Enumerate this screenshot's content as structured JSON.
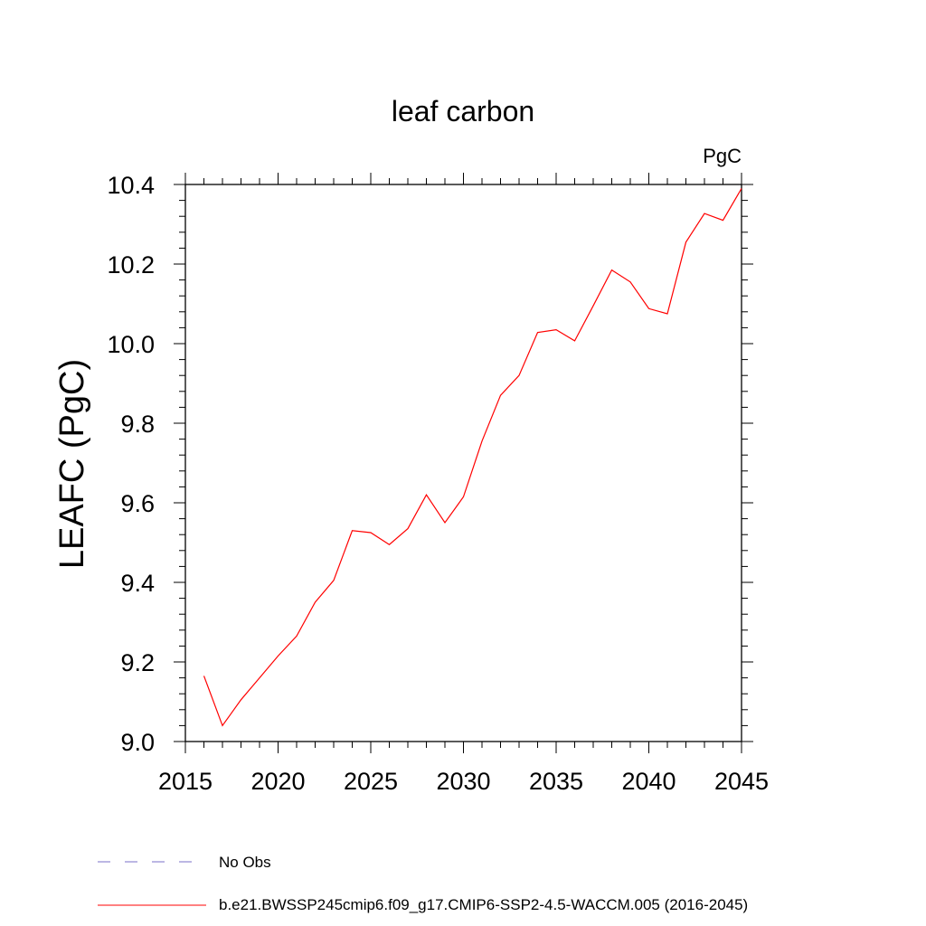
{
  "chart_data": {
    "type": "line",
    "title": "leaf carbon",
    "units_label": "PgC",
    "xlabel": "",
    "ylabel": "LEAFC  (PgC)",
    "xlim": [
      2015,
      2045
    ],
    "ylim": [
      9.0,
      10.4
    ],
    "x_ticks": [
      2015,
      2020,
      2025,
      2030,
      2035,
      2040,
      2045
    ],
    "y_ticks": [
      "9.0",
      "9.2",
      "9.4",
      "9.6",
      "9.8",
      "10.0",
      "10.2",
      "10.4"
    ],
    "grid": false,
    "series": [
      {
        "name": "b.e21.BWSSP245cmip6.f09_g17.CMIP6-SSP2-4.5-WACCM.005 (2016-2045)",
        "color": "#ff0000",
        "x": [
          2016,
          2017,
          2018,
          2019,
          2020,
          2021,
          2022,
          2023,
          2024,
          2025,
          2026,
          2027,
          2028,
          2029,
          2030,
          2031,
          2032,
          2033,
          2034,
          2035,
          2036,
          2037,
          2038,
          2039,
          2040,
          2041,
          2042,
          2043,
          2044,
          2045
        ],
        "values": [
          9.165,
          9.04,
          9.105,
          9.16,
          9.215,
          9.265,
          9.35,
          9.405,
          9.53,
          9.525,
          9.495,
          9.535,
          9.62,
          9.55,
          9.615,
          9.755,
          9.87,
          9.92,
          10.028,
          10.035,
          10.007,
          10.095,
          10.185,
          10.155,
          10.088,
          10.075,
          10.255,
          10.327,
          10.31,
          10.39
        ]
      }
    ],
    "legend": {
      "position": "bottom",
      "entries": [
        {
          "label": "No Obs",
          "style": "dashed",
          "color": "#7a6fc8"
        },
        {
          "label": "b.e21.BWSSP245cmip6.f09_g17.CMIP6-SSP2-4.5-WACCM.005 (2016-2045)",
          "style": "solid",
          "color": "#ff0000"
        }
      ]
    }
  }
}
